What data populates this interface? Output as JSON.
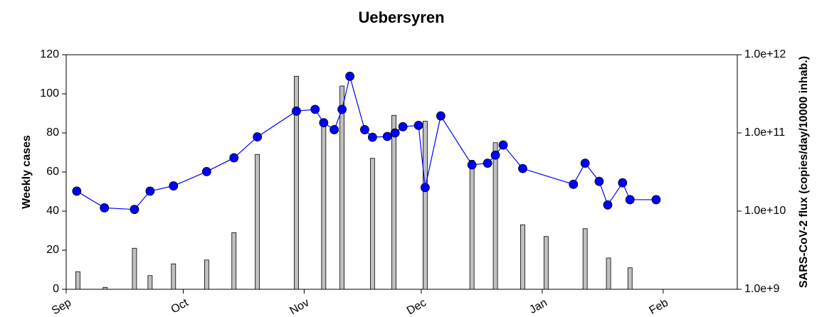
{
  "chart_data": {
    "type": "bar",
    "title": "Uebersyren",
    "y_label": "Weekly cases",
    "y2_label": "SARS-CoV-2 flux (copies/day/10000 inhab.)",
    "xlim": [
      0,
      172
    ],
    "xticks": [
      {
        "value": 0,
        "label": "Sep"
      },
      {
        "value": 30,
        "label": "Oct"
      },
      {
        "value": 61,
        "label": "Nov"
      },
      {
        "value": 91,
        "label": "Dec"
      },
      {
        "value": 122,
        "label": "Jan"
      },
      {
        "value": 153,
        "label": "Feb"
      }
    ],
    "ylim": [
      0,
      120
    ],
    "yticks": [
      0,
      20,
      40,
      60,
      80,
      100,
      120
    ],
    "y2lim": [
      1000000000,
      1000000000000
    ],
    "y2log": true,
    "y2ticks": [
      {
        "value": 1000000000,
        "label": "1.0e+9"
      },
      {
        "value": 10000000000,
        "label": "1.0e+10"
      },
      {
        "value": 100000000000,
        "label": "1.0e+11"
      },
      {
        "value": 1000000000000,
        "label": "1.0e+12"
      }
    ],
    "series": [
      {
        "type": "bar",
        "color": "#c0c0c0",
        "x": [
          3,
          10,
          17.5,
          21.5,
          27.5,
          36,
          43,
          49,
          59,
          66,
          70.7,
          78.5,
          84,
          92,
          104,
          110,
          117,
          123,
          133,
          139,
          144.5
        ],
        "values": [
          9,
          1,
          21,
          7,
          13,
          15,
          29,
          69,
          109,
          87,
          104,
          67,
          89,
          86,
          66,
          75,
          33,
          27,
          31,
          16,
          11
        ]
      },
      {
        "type": "line",
        "axis": "y2",
        "color": "#0000ff",
        "x": [
          2.7,
          9.8,
          17.5,
          21.5,
          27.5,
          36,
          43,
          49,
          59,
          63.8,
          66,
          68.7,
          70.7,
          72.7,
          76.5,
          78.5,
          82.3,
          84.3,
          86.3,
          90.3,
          92,
          96,
          104,
          108,
          110,
          112,
          117,
          130,
          133,
          136.6,
          138.8,
          142.6,
          144.5,
          151.2
        ],
        "values": [
          18000000000,
          11000000000,
          10500000000,
          18000000000,
          21000000000,
          32000000000,
          48000000000,
          89000000000,
          190000000000,
          200000000000,
          135000000000,
          110000000000,
          200000000000,
          530000000000,
          110000000000,
          88000000000,
          90000000000,
          100000000000,
          120000000000,
          125000000000,
          20000000000,
          165000000000,
          39000000000,
          41000000000,
          52000000000,
          70000000000,
          35000000000,
          22000000000,
          41000000000,
          24000000000,
          12000000000,
          23000000000,
          14000000000,
          14000000000
        ]
      }
    ]
  }
}
